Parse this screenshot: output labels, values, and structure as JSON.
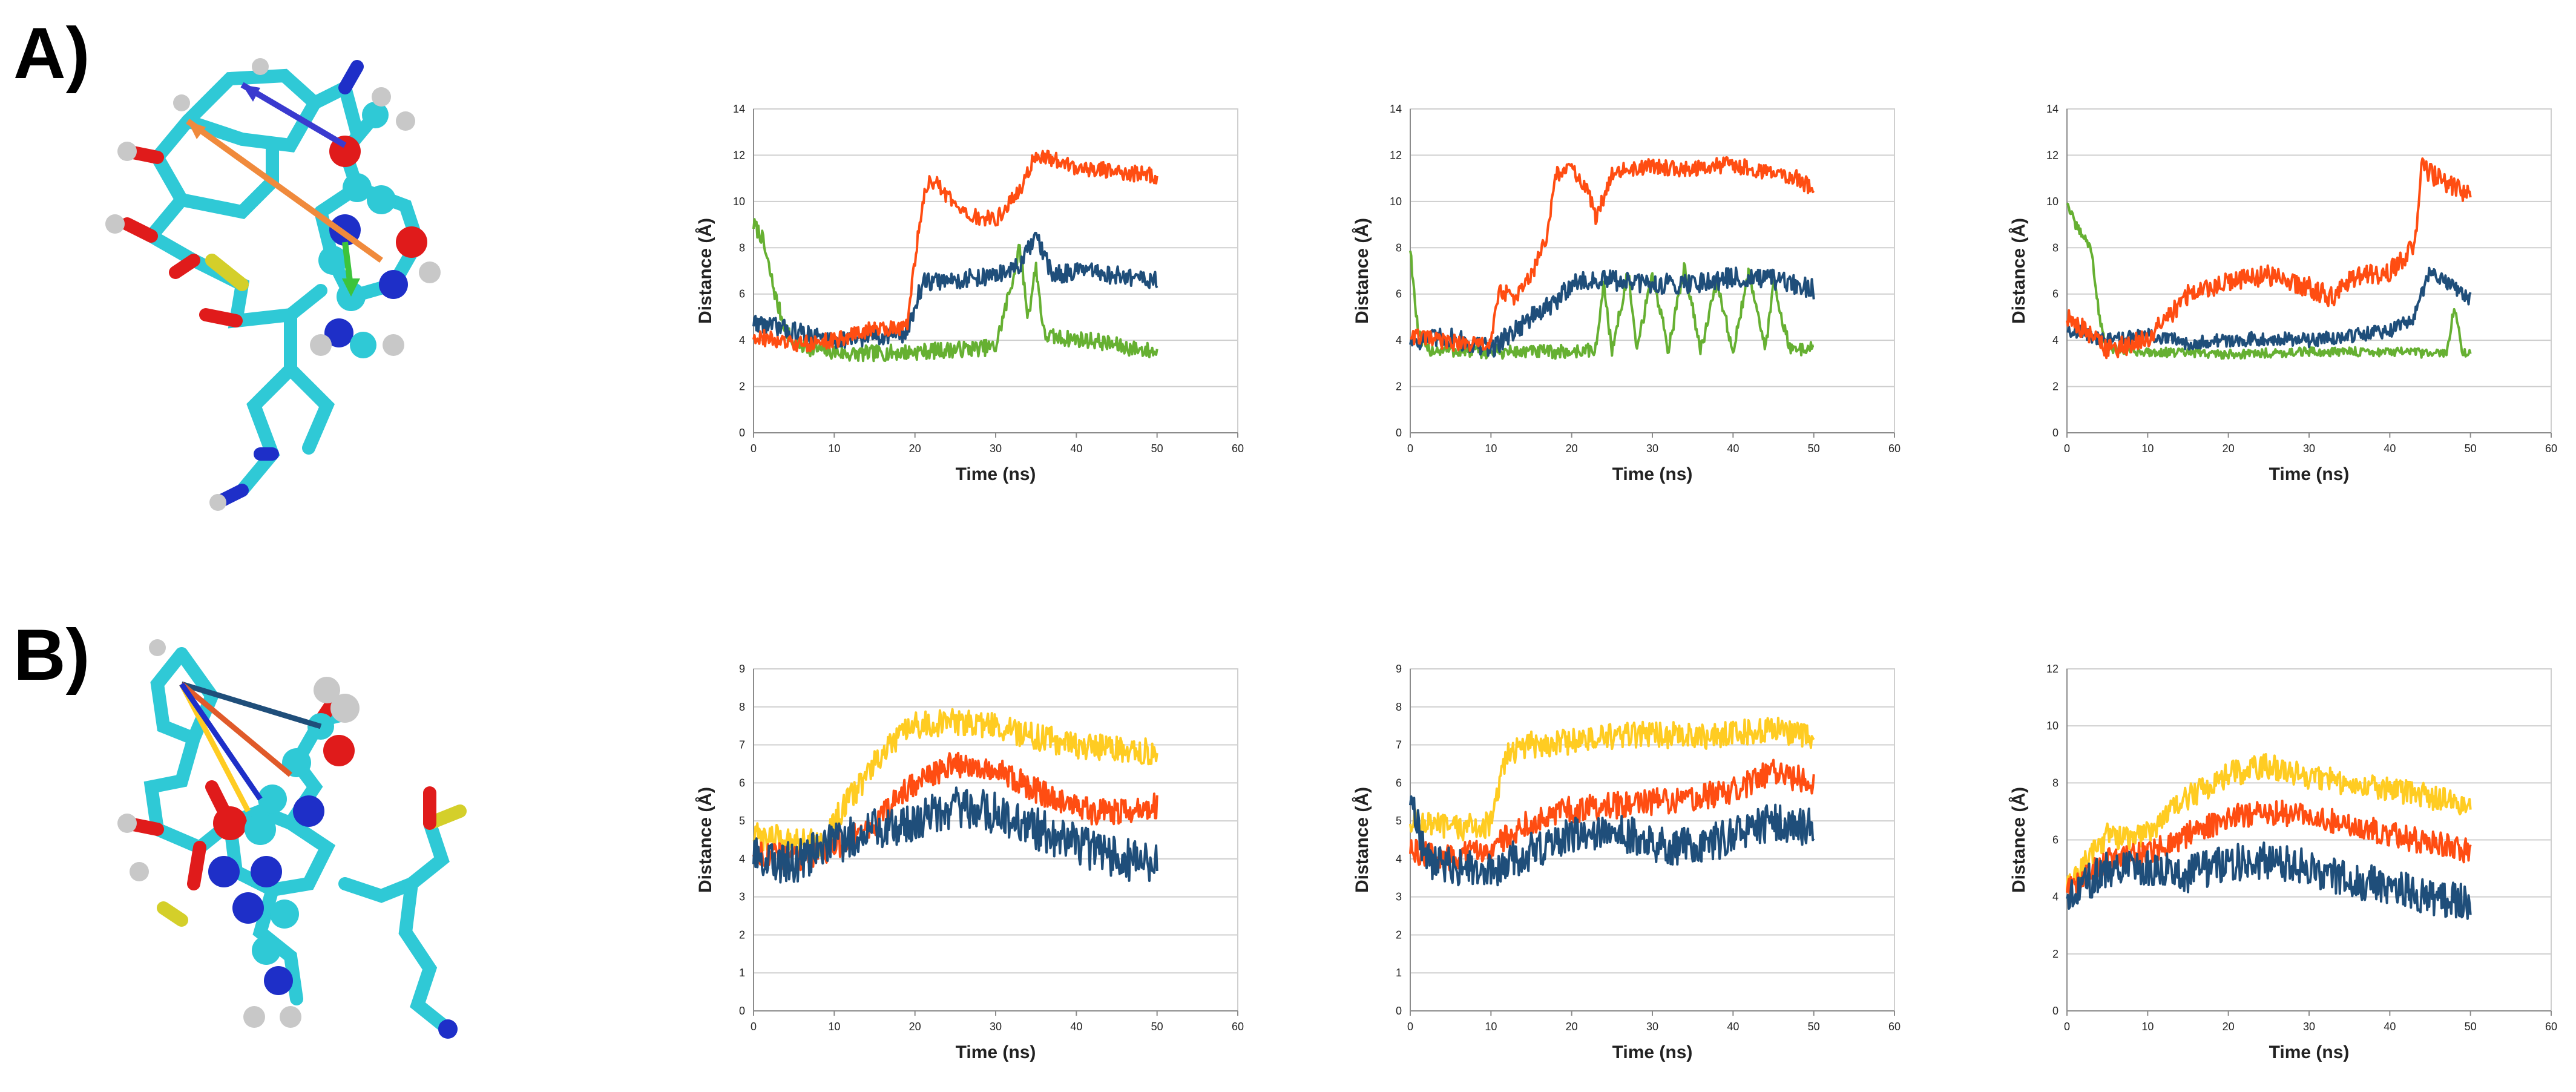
{
  "panels": {
    "A": {
      "label": "A)"
    },
    "B": {
      "label": "B)"
    }
  },
  "colors": {
    "orange": "#FF4D12",
    "blue": "#1F4E7A",
    "green": "#66B032",
    "yellow": "#FFCC22",
    "grid": "#CFCFCF",
    "axis": "#8C8C8C",
    "carbon": "#2FC9D6",
    "nitrogen": "#1E2FC8",
    "oxygen": "#E01B1B",
    "phosphorus": "#D4CF2A",
    "hydrogen": "#C8C8C8"
  },
  "chart_data": [
    {
      "id": "A1",
      "type": "line",
      "title": "",
      "xlabel": "Time (ns)",
      "ylabel": "Distance (Å)",
      "xlim": [
        0,
        60
      ],
      "ylim": [
        0,
        14
      ],
      "xticks": [
        0,
        10,
        20,
        30,
        40,
        50,
        60
      ],
      "yticks": [
        0,
        2,
        4,
        6,
        8,
        10,
        12,
        14
      ],
      "series": [
        {
          "name": "green",
          "color": "#66B032",
          "x": [
            0,
            1,
            2,
            3,
            4,
            5,
            8,
            12,
            20,
            30,
            32,
            33,
            34,
            35,
            36,
            38,
            42,
            46,
            50
          ],
          "values": [
            9,
            8.5,
            7,
            5.5,
            4.5,
            3.8,
            3.6,
            3.4,
            3.5,
            3.7,
            6.5,
            8,
            5,
            7.2,
            4.2,
            4.1,
            4.0,
            3.7,
            3.5
          ],
          "noise": 0.35
        },
        {
          "name": "blue",
          "color": "#1F4E7A",
          "x": [
            0,
            5,
            10,
            15,
            19,
            20,
            21,
            25,
            30,
            33,
            35,
            37,
            40,
            45,
            50
          ],
          "values": [
            4.8,
            4.4,
            4.0,
            4.2,
            4.3,
            5.5,
            6.5,
            6.6,
            6.8,
            7.2,
            8.5,
            6.8,
            7.0,
            6.8,
            6.6
          ],
          "noise": 0.4
        },
        {
          "name": "orange",
          "color": "#FF4D12",
          "x": [
            0,
            5,
            10,
            15,
            19,
            20,
            21,
            22,
            24,
            26,
            30,
            33,
            35,
            40,
            45,
            50
          ],
          "values": [
            4.2,
            3.8,
            4.0,
            4.5,
            4.6,
            7.5,
            10,
            11,
            10.2,
            9.4,
            9.2,
            10.5,
            12,
            11.5,
            11.3,
            11.1
          ],
          "noise": 0.35
        }
      ]
    },
    {
      "id": "A2",
      "type": "line",
      "title": "",
      "xlabel": "Time (ns)",
      "ylabel": "Distance (Å)",
      "xlim": [
        0,
        60
      ],
      "ylim": [
        0,
        14
      ],
      "xticks": [
        0,
        10,
        20,
        30,
        40,
        50,
        60
      ],
      "yticks": [
        0,
        2,
        4,
        6,
        8,
        10,
        12,
        14
      ],
      "series": [
        {
          "name": "green",
          "color": "#66B032",
          "x": [
            0,
            0.5,
            1,
            2,
            10,
            20,
            23,
            24,
            25,
            27,
            28,
            30,
            32,
            34,
            36,
            38,
            40,
            42,
            44,
            45,
            47,
            50
          ],
          "values": [
            8,
            6,
            4.2,
            3.6,
            3.5,
            3.5,
            3.6,
            6.5,
            3.5,
            7,
            3.5,
            6.8,
            3.6,
            7.2,
            3.6,
            6.5,
            3.5,
            7,
            3.5,
            6.6,
            3.6,
            3.7
          ],
          "noise": 0.3
        },
        {
          "name": "blue",
          "color": "#1F4E7A",
          "x": [
            0,
            5,
            10,
            12,
            15,
            18,
            20,
            25,
            30,
            35,
            40,
            45,
            50
          ],
          "values": [
            4.0,
            4.1,
            3.6,
            4.2,
            5.0,
            5.6,
            6.5,
            6.6,
            6.4,
            6.5,
            6.7,
            6.6,
            6.2
          ],
          "noise": 0.45
        },
        {
          "name": "orange",
          "color": "#FF4D12",
          "x": [
            0,
            5,
            10,
            11,
            13,
            15,
            17,
            18,
            20,
            22,
            23,
            25,
            30,
            35,
            40,
            45,
            48,
            50
          ],
          "values": [
            4.2,
            3.9,
            3.8,
            6.2,
            5.8,
            6.8,
            8.5,
            11.2,
            11.4,
            10.5,
            9.2,
            11.3,
            11.5,
            11.4,
            11.6,
            11.2,
            11.0,
            10.5
          ],
          "noise": 0.35
        }
      ]
    },
    {
      "id": "A3",
      "type": "line",
      "title": "",
      "xlabel": "Time (ns)",
      "ylabel": "Distance (Å)",
      "xlim": [
        0,
        60
      ],
      "ylim": [
        0,
        14
      ],
      "xticks": [
        0,
        10,
        20,
        30,
        40,
        50,
        60
      ],
      "yticks": [
        0,
        2,
        4,
        6,
        8,
        10,
        12,
        14
      ],
      "series": [
        {
          "name": "green",
          "color": "#66B032",
          "x": [
            0,
            1,
            2,
            3,
            4,
            5,
            10,
            20,
            30,
            40,
            47,
            48,
            49,
            50
          ],
          "values": [
            10,
            9,
            8.5,
            8,
            5,
            3.6,
            3.5,
            3.4,
            3.5,
            3.5,
            3.4,
            5.5,
            3.5,
            3.4
          ],
          "noise": 0.2
        },
        {
          "name": "blue",
          "color": "#1F4E7A",
          "x": [
            0,
            5,
            10,
            15,
            20,
            25,
            30,
            35,
            40,
            43,
            45,
            47,
            50
          ],
          "values": [
            4.5,
            4.0,
            4.2,
            3.9,
            4.0,
            4.1,
            4.0,
            4.2,
            4.4,
            5.0,
            7.0,
            6.5,
            5.8
          ],
          "noise": 0.3
        },
        {
          "name": "orange",
          "color": "#FF4D12",
          "x": [
            0,
            3,
            5,
            10,
            12,
            15,
            20,
            25,
            30,
            33,
            35,
            40,
            43,
            44,
            45,
            47,
            50
          ],
          "values": [
            5.0,
            4.2,
            3.6,
            4.0,
            4.8,
            6.0,
            6.5,
            6.8,
            6.3,
            5.8,
            6.6,
            7.0,
            8.0,
            11.5,
            11.2,
            10.8,
            10.3
          ],
          "noise": 0.45
        }
      ]
    },
    {
      "id": "B1",
      "type": "line",
      "title": "",
      "xlabel": "Time (ns)",
      "ylabel": "Distance (Å)",
      "xlim": [
        0,
        60
      ],
      "ylim": [
        0,
        9
      ],
      "xticks": [
        0,
        10,
        20,
        30,
        40,
        50,
        60
      ],
      "yticks": [
        0,
        1,
        2,
        3,
        4,
        5,
        6,
        7,
        8,
        9
      ],
      "series": [
        {
          "name": "yellow",
          "color": "#FFCC22",
          "x": [
            0,
            5,
            9,
            10,
            12,
            15,
            18,
            20,
            25,
            30,
            35,
            40,
            45,
            50
          ],
          "values": [
            4.6,
            4.5,
            4.4,
            5.0,
            5.6,
            6.5,
            7.2,
            7.5,
            7.6,
            7.5,
            7.2,
            7.0,
            6.9,
            6.8
          ],
          "noise": 0.35
        },
        {
          "name": "orange",
          "color": "#FF4D12",
          "x": [
            0,
            5,
            10,
            15,
            18,
            20,
            25,
            30,
            35,
            40,
            45,
            50
          ],
          "values": [
            4.2,
            4.0,
            4.3,
            4.9,
            5.6,
            6.0,
            6.5,
            6.4,
            5.8,
            5.3,
            5.2,
            5.4
          ],
          "noise": 0.35
        },
        {
          "name": "blue",
          "color": "#1F4E7A",
          "x": [
            0,
            5,
            10,
            15,
            20,
            25,
            30,
            35,
            40,
            45,
            50
          ],
          "values": [
            4.0,
            3.9,
            4.4,
            4.8,
            5.0,
            5.4,
            5.2,
            4.8,
            4.4,
            4.0,
            3.9
          ],
          "noise": 0.55
        }
      ]
    },
    {
      "id": "B2",
      "type": "line",
      "title": "",
      "xlabel": "Time (ns)",
      "ylabel": "Distance (Å)",
      "xlim": [
        0,
        60
      ],
      "ylim": [
        0,
        9
      ],
      "xticks": [
        0,
        10,
        20,
        30,
        40,
        50,
        60
      ],
      "yticks": [
        0,
        1,
        2,
        3,
        4,
        5,
        6,
        7,
        8,
        9
      ],
      "series": [
        {
          "name": "yellow",
          "color": "#FFCC22",
          "x": [
            0,
            5,
            10,
            12,
            15,
            20,
            25,
            30,
            35,
            40,
            45,
            50
          ],
          "values": [
            5.0,
            4.8,
            4.9,
            6.8,
            7.0,
            7.1,
            7.2,
            7.3,
            7.2,
            7.3,
            7.4,
            7.2
          ],
          "noise": 0.35
        },
        {
          "name": "orange",
          "color": "#FF4D12",
          "x": [
            0,
            5,
            10,
            15,
            20,
            25,
            30,
            35,
            40,
            45,
            50
          ],
          "values": [
            4.2,
            4.0,
            4.3,
            5.0,
            5.3,
            5.4,
            5.5,
            5.6,
            5.8,
            6.3,
            6.0
          ],
          "noise": 0.35
        },
        {
          "name": "blue",
          "color": "#1F4E7A",
          "x": [
            0,
            2,
            5,
            10,
            15,
            20,
            25,
            30,
            35,
            40,
            45,
            50
          ],
          "values": [
            5.5,
            4.0,
            3.8,
            3.7,
            4.2,
            4.6,
            4.8,
            4.4,
            4.3,
            4.6,
            5.0,
            4.8
          ],
          "noise": 0.5
        }
      ]
    },
    {
      "id": "B3",
      "type": "line",
      "title": "",
      "xlabel": "Time (ns)",
      "ylabel": "Distance (Å)",
      "xlim": [
        0,
        60
      ],
      "ylim": [
        0,
        12
      ],
      "xticks": [
        0,
        10,
        20,
        30,
        40,
        50,
        60
      ],
      "yticks": [
        0,
        2,
        4,
        6,
        8,
        10,
        12
      ],
      "series": [
        {
          "name": "yellow",
          "color": "#FFCC22",
          "x": [
            0,
            3,
            5,
            8,
            10,
            15,
            20,
            25,
            30,
            35,
            40,
            45,
            50
          ],
          "values": [
            4.3,
            5.5,
            6.2,
            6.0,
            6.3,
            7.5,
            8.3,
            8.6,
            8.2,
            8.0,
            7.8,
            7.5,
            7.2
          ],
          "noise": 0.45
        },
        {
          "name": "orange",
          "color": "#FF4D12",
          "x": [
            0,
            3,
            5,
            10,
            15,
            20,
            25,
            30,
            35,
            40,
            45,
            50
          ],
          "values": [
            4.2,
            4.8,
            5.3,
            5.5,
            6.2,
            6.8,
            7.0,
            6.8,
            6.5,
            6.2,
            5.9,
            5.6
          ],
          "noise": 0.45
        },
        {
          "name": "blue",
          "color": "#1F4E7A",
          "x": [
            0,
            3,
            5,
            10,
            15,
            20,
            25,
            30,
            35,
            40,
            45,
            50
          ],
          "values": [
            4.0,
            4.6,
            5.0,
            5.0,
            4.8,
            5.2,
            5.3,
            5.0,
            4.6,
            4.4,
            4.0,
            3.8
          ],
          "noise": 0.65
        }
      ]
    }
  ]
}
